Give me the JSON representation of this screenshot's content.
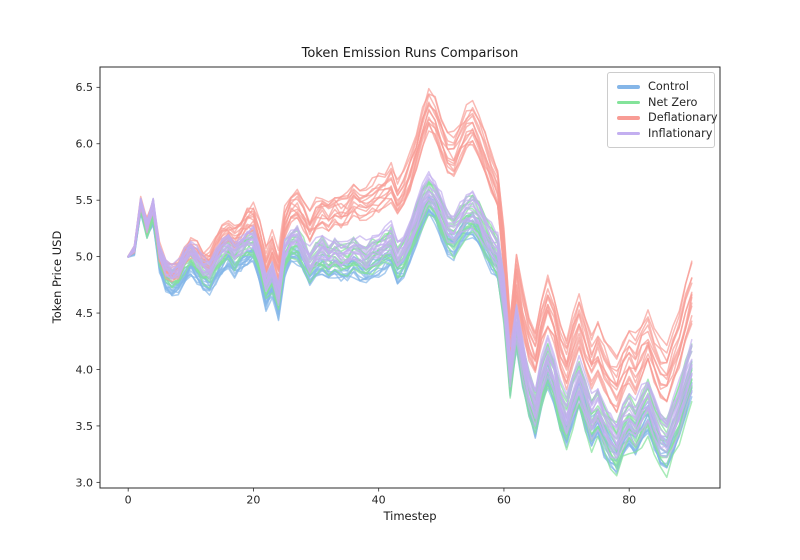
{
  "chart_data": {
    "type": "line",
    "title": "Token Emission Runs Comparison",
    "xlabel": "Timestep",
    "ylabel": "Token Price USD",
    "xlim": [
      -4.5,
      94.5
    ],
    "ylim": [
      2.95,
      6.68
    ],
    "xticks": [
      0,
      20,
      40,
      60,
      80
    ],
    "yticks": [
      3.0,
      3.5,
      4.0,
      4.5,
      5.0,
      5.5,
      6.0,
      6.5
    ],
    "grid": false,
    "legend_position": "upper right",
    "x_start": 0,
    "x_step": 1,
    "n_timesteps": 91,
    "runs_per_series": 14,
    "run_noise": 0.09,
    "seed": 7,
    "series": [
      {
        "name": "Control",
        "color": "#85b6e8",
        "spread": [
          0.05,
          0.19
        ],
        "mean": [
          5.0,
          5.03,
          5.42,
          5.2,
          5.35,
          4.92,
          4.75,
          4.7,
          4.73,
          4.84,
          4.9,
          4.83,
          4.76,
          4.73,
          4.83,
          4.92,
          4.96,
          4.89,
          4.94,
          5.0,
          5.02,
          4.85,
          4.6,
          4.72,
          4.52,
          4.9,
          5.0,
          5.02,
          4.92,
          4.8,
          4.88,
          4.92,
          4.86,
          4.9,
          4.86,
          4.87,
          4.92,
          4.88,
          4.85,
          4.9,
          4.93,
          4.96,
          5.0,
          4.85,
          4.92,
          5.05,
          5.2,
          5.35,
          5.45,
          5.38,
          5.25,
          5.12,
          5.08,
          5.18,
          5.25,
          5.28,
          5.2,
          5.08,
          4.98,
          4.9,
          4.52,
          3.85,
          4.3,
          3.95,
          3.68,
          3.52,
          3.78,
          3.95,
          3.8,
          3.55,
          3.42,
          3.62,
          3.76,
          3.58,
          3.42,
          3.52,
          3.37,
          3.27,
          3.2,
          3.34,
          3.43,
          3.36,
          3.48,
          3.57,
          3.42,
          3.28,
          3.23,
          3.38,
          3.52,
          3.72,
          3.9
        ]
      },
      {
        "name": "Net Zero",
        "color": "#83e39a",
        "spread": [
          0.07,
          0.3
        ],
        "mean": [
          5.0,
          5.06,
          5.46,
          5.26,
          5.43,
          5.02,
          4.87,
          4.82,
          4.85,
          4.96,
          5.02,
          4.95,
          4.88,
          4.85,
          4.95,
          5.04,
          5.08,
          5.01,
          5.06,
          5.12,
          5.14,
          4.97,
          4.72,
          4.84,
          4.64,
          5.02,
          5.12,
          5.14,
          5.04,
          4.92,
          5.0,
          5.04,
          4.98,
          5.02,
          4.98,
          4.99,
          5.04,
          5.0,
          4.97,
          5.02,
          5.05,
          5.08,
          5.12,
          4.97,
          5.04,
          5.17,
          5.32,
          5.47,
          5.57,
          5.5,
          5.37,
          5.24,
          5.2,
          5.3,
          5.37,
          5.4,
          5.32,
          5.2,
          5.1,
          5.02,
          4.64,
          3.97,
          4.42,
          4.07,
          3.8,
          3.64,
          3.9,
          4.07,
          3.92,
          3.67,
          3.54,
          3.74,
          3.88,
          3.7,
          3.54,
          3.64,
          3.49,
          3.39,
          3.32,
          3.46,
          3.55,
          3.48,
          3.6,
          3.69,
          3.54,
          3.4,
          3.35,
          3.5,
          3.64,
          3.84,
          4.02
        ]
      },
      {
        "name": "Deflationary",
        "color": "#f89c95",
        "spread": [
          0.07,
          0.34
        ],
        "mean": [
          5.0,
          5.06,
          5.47,
          5.27,
          5.45,
          5.03,
          4.89,
          4.85,
          4.89,
          5.01,
          5.09,
          5.03,
          4.98,
          4.96,
          5.07,
          5.17,
          5.22,
          5.16,
          5.23,
          5.31,
          5.34,
          5.18,
          4.95,
          5.08,
          4.9,
          5.29,
          5.41,
          5.44,
          5.35,
          5.25,
          5.35,
          5.4,
          5.36,
          5.42,
          5.4,
          5.43,
          5.5,
          5.47,
          5.45,
          5.51,
          5.55,
          5.59,
          5.64,
          5.5,
          5.57,
          5.73,
          5.92,
          6.13,
          6.29,
          6.21,
          6.05,
          5.9,
          5.88,
          6.01,
          6.11,
          6.16,
          6.04,
          5.88,
          5.72,
          5.58,
          5.07,
          4.25,
          4.82,
          4.5,
          4.26,
          4.12,
          4.4,
          4.58,
          4.44,
          4.18,
          4.04,
          4.25,
          4.4,
          4.22,
          4.05,
          4.17,
          4.02,
          3.91,
          3.85,
          4.0,
          4.1,
          4.02,
          4.16,
          4.26,
          4.1,
          3.97,
          3.93,
          4.09,
          4.24,
          4.46,
          4.66
        ]
      },
      {
        "name": "Inflationary",
        "color": "#c3aff0",
        "spread": [
          0.05,
          0.24
        ],
        "mean": [
          5.0,
          5.07,
          5.48,
          5.28,
          5.46,
          5.05,
          4.91,
          4.86,
          4.89,
          5.0,
          5.06,
          4.99,
          4.92,
          4.89,
          4.99,
          5.08,
          5.12,
          5.05,
          5.1,
          5.16,
          5.18,
          5.01,
          4.76,
          4.88,
          4.68,
          5.06,
          5.16,
          5.18,
          5.08,
          4.96,
          5.04,
          5.08,
          5.02,
          5.06,
          5.02,
          5.03,
          5.08,
          5.04,
          5.01,
          5.06,
          5.09,
          5.12,
          5.16,
          5.01,
          5.08,
          5.21,
          5.36,
          5.51,
          5.61,
          5.54,
          5.41,
          5.28,
          5.24,
          5.34,
          5.41,
          5.44,
          5.36,
          5.24,
          5.14,
          5.06,
          4.68,
          4.01,
          4.46,
          4.11,
          3.84,
          3.68,
          3.94,
          4.11,
          3.96,
          3.71,
          3.58,
          3.78,
          3.92,
          3.74,
          3.58,
          3.68,
          3.53,
          3.43,
          3.36,
          3.5,
          3.59,
          3.52,
          3.64,
          3.73,
          3.58,
          3.44,
          3.39,
          3.54,
          3.68,
          3.88,
          4.06
        ]
      }
    ]
  }
}
